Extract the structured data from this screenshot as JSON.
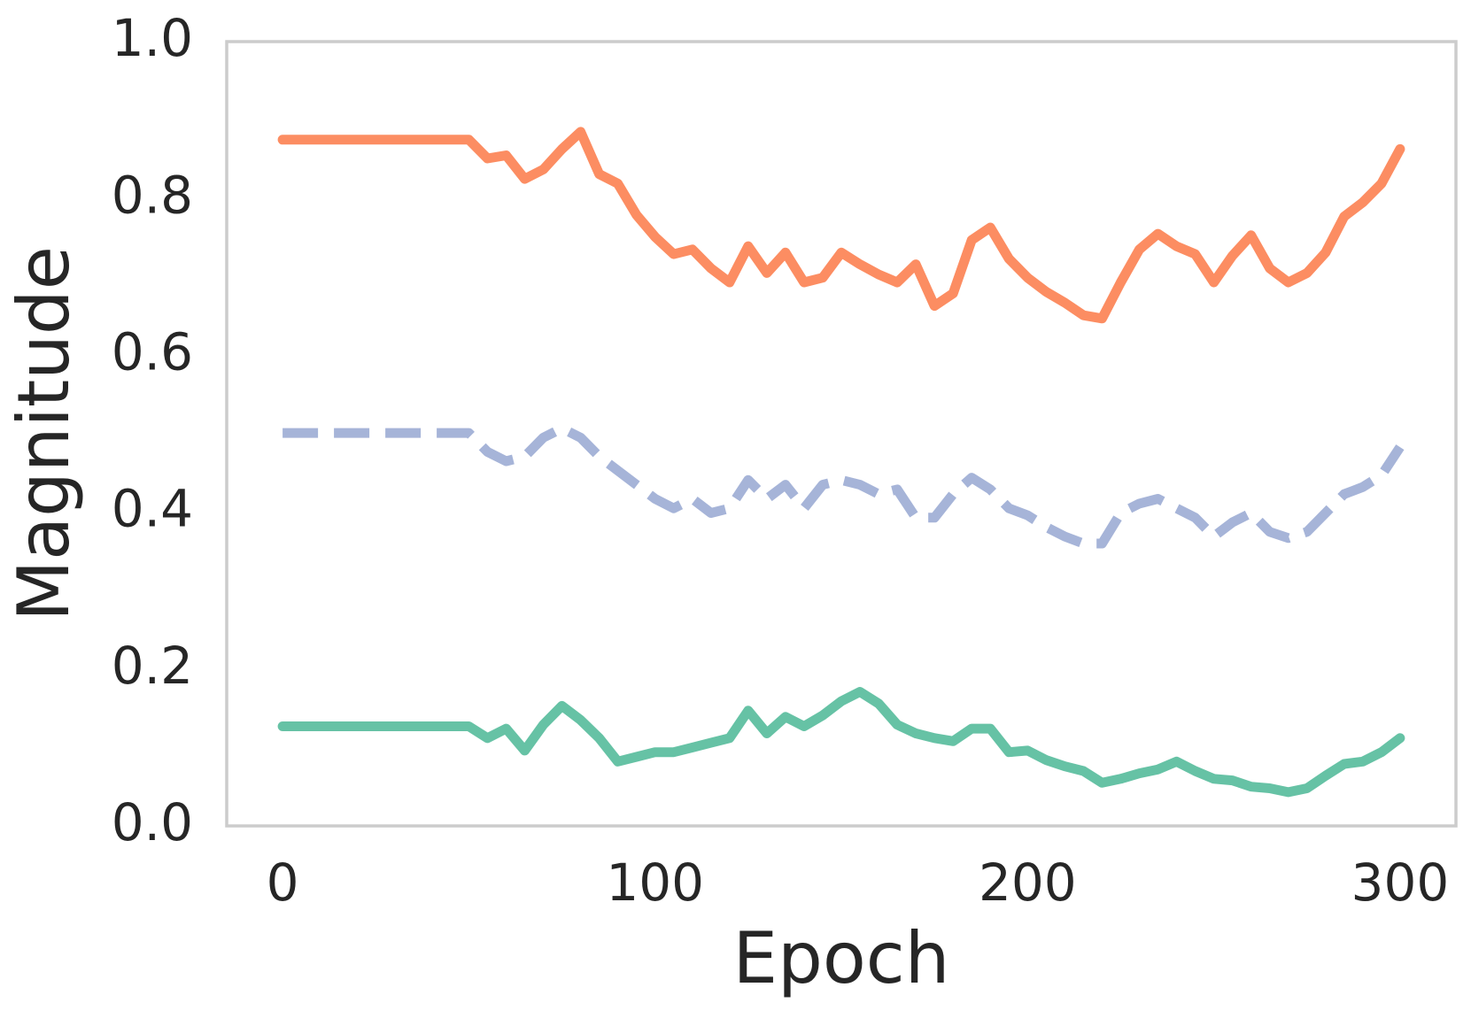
{
  "chart_data": {
    "type": "line",
    "xlabel": "Epoch",
    "ylabel": "Magnitude",
    "x": [
      0,
      50,
      55,
      60,
      65,
      70,
      75,
      80,
      85,
      90,
      95,
      100,
      105,
      110,
      115,
      120,
      125,
      130,
      135,
      140,
      145,
      150,
      155,
      160,
      165,
      170,
      175,
      180,
      185,
      190,
      195,
      200,
      205,
      210,
      215,
      220,
      225,
      230,
      235,
      240,
      245,
      250,
      255,
      260,
      265,
      270,
      275,
      280,
      285,
      290,
      295,
      300
    ],
    "series": [
      {
        "color": "#fc8d62",
        "linestyle": "solid",
        "values": [
          0.875,
          0.875,
          0.851,
          0.855,
          0.825,
          0.837,
          0.863,
          0.885,
          0.831,
          0.819,
          0.779,
          0.751,
          0.729,
          0.735,
          0.711,
          0.693,
          0.739,
          0.705,
          0.731,
          0.693,
          0.699,
          0.731,
          0.716,
          0.703,
          0.693,
          0.716,
          0.663,
          0.679,
          0.747,
          0.763,
          0.723,
          0.699,
          0.681,
          0.667,
          0.651,
          0.647,
          0.693,
          0.735,
          0.755,
          0.739,
          0.729,
          0.693,
          0.727,
          0.753,
          0.711,
          0.693,
          0.705,
          0.731,
          0.777,
          0.795,
          0.819,
          0.863
        ]
      },
      {
        "color": "#a6b4d8",
        "linestyle": "dashed",
        "values": [
          0.501,
          0.501,
          0.477,
          0.465,
          0.471,
          0.495,
          0.507,
          0.495,
          0.471,
          0.453,
          0.435,
          0.417,
          0.405,
          0.417,
          0.399,
          0.405,
          0.441,
          0.417,
          0.435,
          0.405,
          0.435,
          0.441,
          0.435,
          0.423,
          0.429,
          0.393,
          0.393,
          0.423,
          0.444,
          0.429,
          0.405,
          0.396,
          0.381,
          0.369,
          0.36,
          0.36,
          0.399,
          0.411,
          0.417,
          0.405,
          0.393,
          0.369,
          0.387,
          0.399,
          0.375,
          0.367,
          0.375,
          0.399,
          0.423,
          0.432,
          0.447,
          0.483
        ]
      },
      {
        "color": "#66c2a5",
        "linestyle": "solid",
        "values": [
          0.127,
          0.127,
          0.112,
          0.124,
          0.096,
          0.129,
          0.153,
          0.135,
          0.112,
          0.082,
          0.088,
          0.094,
          0.094,
          0.1,
          0.106,
          0.112,
          0.147,
          0.118,
          0.139,
          0.127,
          0.141,
          0.159,
          0.171,
          0.156,
          0.129,
          0.118,
          0.112,
          0.108,
          0.124,
          0.124,
          0.094,
          0.096,
          0.084,
          0.076,
          0.07,
          0.055,
          0.06,
          0.067,
          0.072,
          0.082,
          0.07,
          0.06,
          0.058,
          0.05,
          0.048,
          0.043,
          0.048,
          0.064,
          0.079,
          0.082,
          0.094,
          0.112
        ]
      }
    ],
    "xlim": [
      -15,
      315
    ],
    "xticks": [
      0,
      100,
      200,
      300
    ],
    "ylim": [
      0,
      1
    ],
    "yticks": [
      {
        "value": 0,
        "label": "0.0"
      },
      0.2,
      0.4,
      0.6,
      0.8,
      {
        "value": 1,
        "label": "1.0"
      }
    ],
    "grid": false
  }
}
